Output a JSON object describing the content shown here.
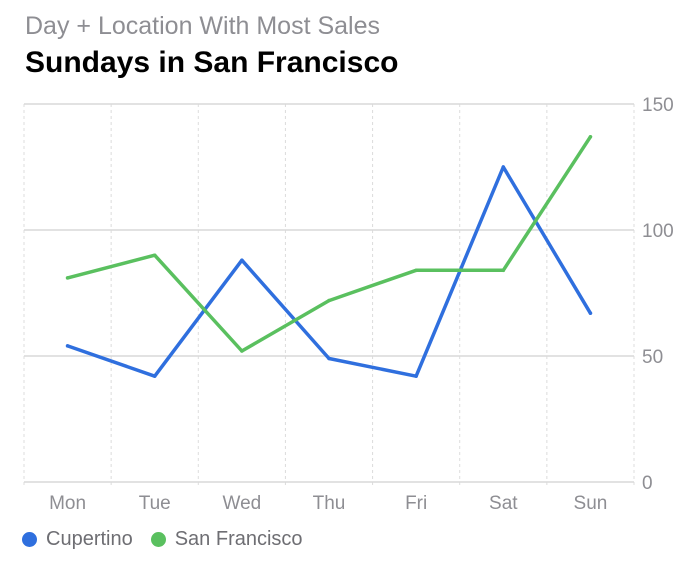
{
  "header": {
    "subtitle": "Day + Location With Most Sales",
    "title": "Sundays in San Francisco"
  },
  "chart_data": {
    "type": "line",
    "x": [
      "Mon",
      "Tue",
      "Wed",
      "Thu",
      "Fri",
      "Sat",
      "Sun"
    ],
    "series": [
      {
        "name": "Cupertino",
        "values": [
          54,
          42,
          88,
          49,
          42,
          125,
          67
        ],
        "color": "#2f6fde"
      },
      {
        "name": "San Francisco",
        "values": [
          81,
          90,
          52,
          72,
          84,
          84,
          137
        ],
        "color": "#5ac05f"
      }
    ],
    "yticks": [
      0,
      50,
      100,
      150
    ],
    "ylim": [
      0,
      150
    ],
    "y_axis_position": "right",
    "grid": true,
    "legend_position": "bottom-left"
  },
  "colors": {
    "grid_solid": "#d9d9d9",
    "grid_dashed": "#dcdcdc",
    "tick_label": "#8e8e93"
  }
}
